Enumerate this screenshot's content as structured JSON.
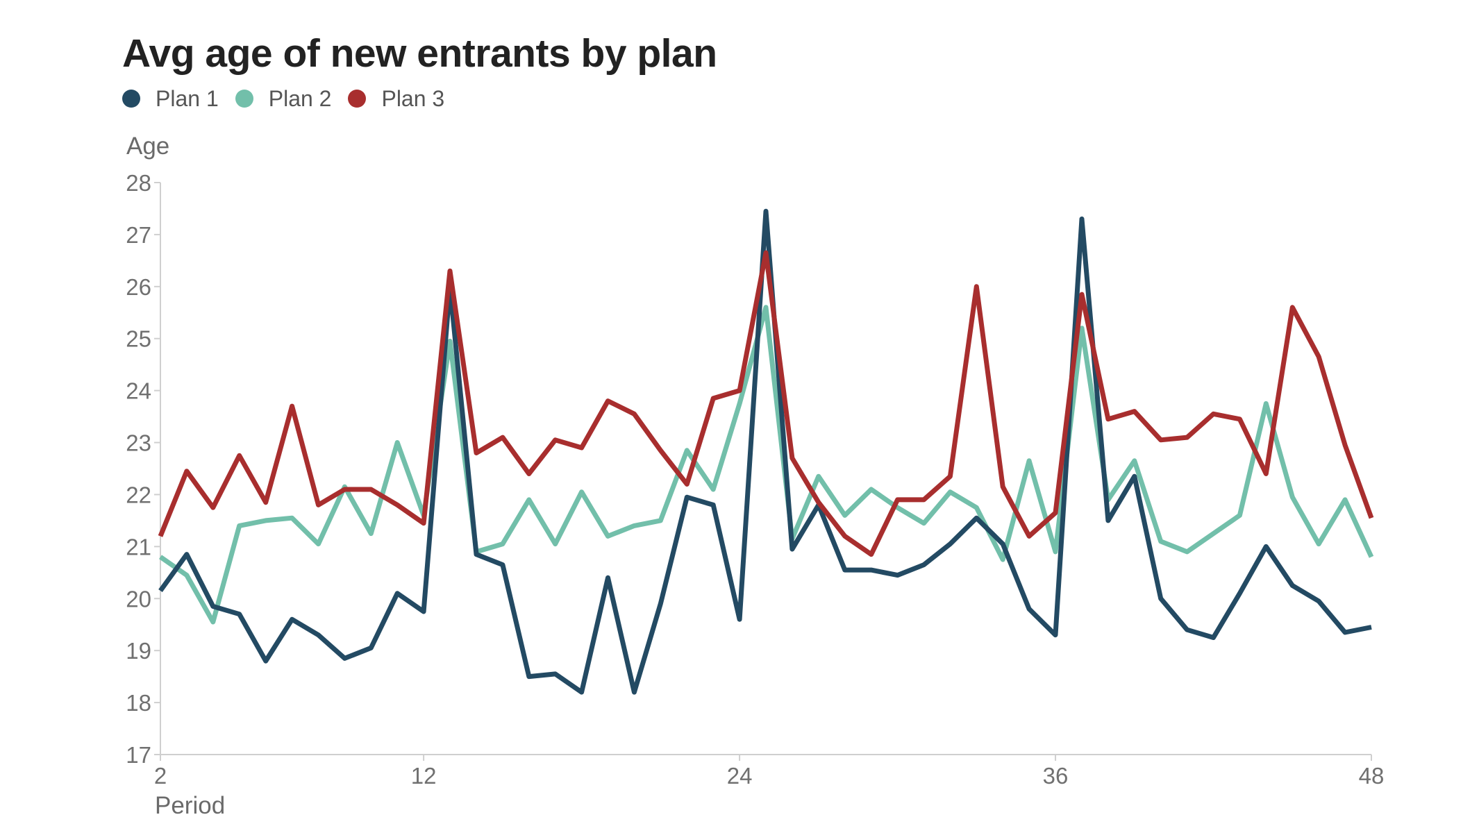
{
  "chart_data": {
    "type": "line",
    "title": "Avg age of new entrants by plan",
    "xlabel": "Period",
    "ylabel": "Age",
    "xlim": [
      2,
      48
    ],
    "ylim": [
      17,
      28
    ],
    "xticks": [
      2,
      12,
      24,
      36,
      48
    ],
    "yticks": [
      17,
      18,
      19,
      20,
      21,
      22,
      23,
      24,
      25,
      26,
      27,
      28
    ],
    "grid": false,
    "legend_position": "top-left",
    "x": [
      2,
      3,
      4,
      5,
      6,
      7,
      8,
      9,
      10,
      11,
      12,
      13,
      14,
      15,
      16,
      17,
      18,
      19,
      20,
      21,
      22,
      23,
      24,
      25,
      26,
      27,
      28,
      29,
      30,
      31,
      32,
      33,
      34,
      35,
      36,
      37,
      38,
      39,
      40,
      41,
      42,
      43,
      44,
      45,
      46,
      47,
      48
    ],
    "series": [
      {
        "name": "Plan 1",
        "color": "#234a63",
        "values": [
          20.15,
          20.85,
          19.85,
          19.7,
          18.8,
          19.6,
          19.3,
          18.85,
          19.05,
          20.1,
          19.75,
          26.0,
          20.85,
          20.65,
          18.5,
          18.55,
          18.2,
          20.4,
          18.2,
          19.9,
          21.95,
          21.8,
          19.6,
          27.45,
          20.95,
          21.8,
          20.55,
          20.55,
          20.45,
          20.65,
          21.05,
          21.55,
          21.05,
          19.8,
          19.3,
          27.3,
          21.5,
          22.35,
          20.0,
          19.4,
          19.25,
          20.1,
          21.0,
          20.25,
          19.95,
          19.35,
          19.45
        ]
      },
      {
        "name": "Plan 2",
        "color": "#72bfaa",
        "values": [
          20.8,
          20.45,
          19.55,
          21.4,
          21.5,
          21.55,
          21.05,
          22.15,
          21.25,
          23.0,
          21.6,
          24.95,
          20.9,
          21.05,
          21.9,
          21.05,
          22.05,
          21.2,
          21.4,
          21.5,
          22.85,
          22.1,
          23.75,
          25.6,
          21.15,
          22.35,
          21.6,
          22.1,
          21.75,
          21.45,
          22.05,
          21.75,
          20.75,
          22.65,
          20.9,
          25.2,
          21.9,
          22.65,
          21.1,
          20.9,
          21.25,
          21.6,
          23.75,
          21.95,
          21.05,
          21.9,
          20.8
        ]
      },
      {
        "name": "Plan 3",
        "color": "#a82e2e",
        "values": [
          21.2,
          22.45,
          21.75,
          22.75,
          21.85,
          23.7,
          21.8,
          22.1,
          22.1,
          21.8,
          21.45,
          26.3,
          22.8,
          23.1,
          22.4,
          23.05,
          22.9,
          23.8,
          23.55,
          22.85,
          22.2,
          23.85,
          24.0,
          26.65,
          22.7,
          21.85,
          21.2,
          20.85,
          21.9,
          21.9,
          22.35,
          26.0,
          22.15,
          21.2,
          21.65,
          25.85,
          23.45,
          23.6,
          23.05,
          23.1,
          23.55,
          23.45,
          22.4,
          25.6,
          24.65,
          22.95,
          21.55
        ]
      }
    ]
  }
}
